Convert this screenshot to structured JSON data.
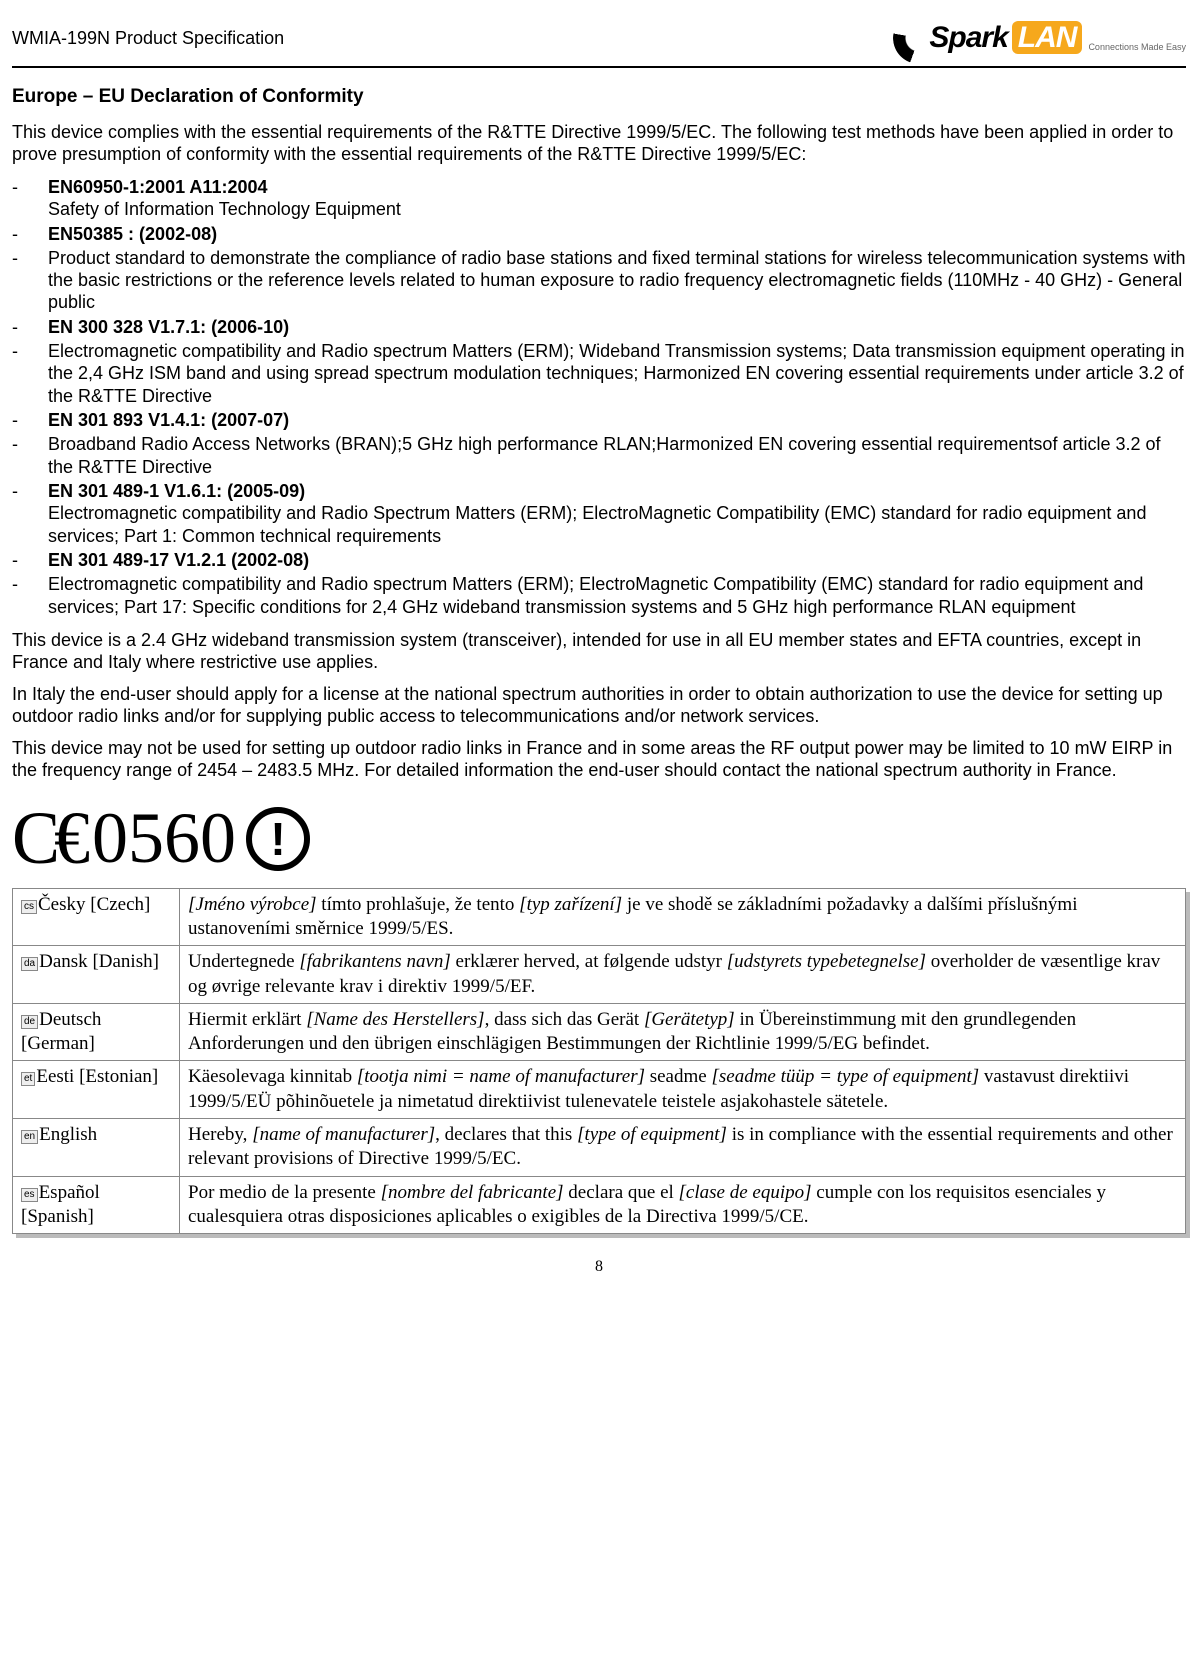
{
  "header": {
    "product": "WMIA-199N Product Specification",
    "logo_brand_a": "S",
    "logo_brand_b": "ark",
    "logo_lan": "LAN",
    "logo_tag": "Connections Made Easy"
  },
  "section_title": "Europe – EU Declaration of Conformity",
  "intro": "This device complies with the essential requirements of the R&TTE Directive 1999/5/EC. The following test methods have been applied in order to prove presumption of conformity with the essential requirements of the R&TTE Directive 1999/5/EC:",
  "standards": [
    {
      "head": "EN60950-1:2001 A11:2004",
      "body": "Safety of Information Technology Equipment",
      "inline": true
    },
    {
      "head": "EN50385 : (2002-08)",
      "body": "",
      "inline": false
    },
    {
      "head": "",
      "body": "Product standard to demonstrate the compliance of radio base stations and fixed terminal stations for wireless telecommunication systems with the basic restrictions or the reference levels related to human exposure to radio frequency electromagnetic fields (110MHz - 40 GHz) - General public",
      "inline": false
    },
    {
      "head": "EN 300 328 V1.7.1: (2006-10)",
      "body": "",
      "inline": false
    },
    {
      "head": "",
      "body": "Electromagnetic compatibility and Radio spectrum Matters (ERM); Wideband Transmission systems; Data transmission equipment operating in the 2,4 GHz ISM band and using spread spectrum modulation techniques; Harmonized EN covering essential requirements under article 3.2 of the R&TTE Directive",
      "inline": false
    },
    {
      "head": "EN 301 893 V1.4.1: (2007-07)",
      "body": "",
      "inline": false
    },
    {
      "head": "",
      "body": "Broadband Radio Access Networks (BRAN);5 GHz high performance RLAN;Harmonized EN covering essential requirementsof article 3.2 of the R&TTE Directive",
      "inline": false
    },
    {
      "head": "EN 301 489-1 V1.6.1: (2005-09)",
      "body": "Electromagnetic compatibility and Radio Spectrum Matters (ERM); ElectroMagnetic Compatibility (EMC) standard for radio equipment and services; Part 1: Common technical requirements",
      "inline": true
    },
    {
      "head": "EN 301 489-17 V1.2.1 (2002-08)",
      "body": "",
      "inline": false
    },
    {
      "head": "",
      "body": "Electromagnetic compatibility and Radio spectrum Matters (ERM); ElectroMagnetic Compatibility (EMC) standard for radio equipment and services; Part 17: Specific conditions for 2,4 GHz wideband transmission systems and 5 GHz high performance RLAN equipment",
      "inline": false
    }
  ],
  "para1": "This device is a 2.4 GHz wideband transmission system (transceiver), intended for use in all EU member states and EFTA countries, except in France and Italy where restrictive use applies.",
  "para2": "In Italy the end-user should apply for a license at the national spectrum authorities in order to obtain authorization to use the device for setting up outdoor radio links and/or for supplying public access to telecommunications and/or network services.",
  "para3": "This device may not be used for setting up outdoor radio links in France and in some areas the RF output power may be limited to 10 mW EIRP in the frequency range of 2454 – 2483.5 MHz. For detailed information the end-user should contact the national spectrum authority in France.",
  "ce": {
    "mark": "C€",
    "number": "0560",
    "warn": "!"
  },
  "table": [
    {
      "code": "cs",
      "lang": "Česky",
      "en": "[Czech]",
      "pre": "",
      "i1": "[Jméno výrobce]",
      "mid1": " tímto prohlašuje, že tento ",
      "i2": "[typ zařízení]",
      "mid2": " je ve shodě se základními požadavky a dalšími příslušnými ustanoveními směrnice 1999/5/ES.",
      "i3": "",
      "post": ""
    },
    {
      "code": "da",
      "lang": "Dansk",
      "en": "[Danish]",
      "pre": "Undertegnede ",
      "i1": "[fabrikantens navn]",
      "mid1": " erklærer herved, at følgende udstyr ",
      "i2": "[udstyrets typebetegnelse]",
      "mid2": " overholder de væsentlige krav og øvrige relevante krav i direktiv 1999/5/EF.",
      "i3": "",
      "post": ""
    },
    {
      "code": "de",
      "lang": "Deutsch",
      "en": "[German]",
      "pre": "Hiermit erklärt ",
      "i1": "[Name des Herstellers]",
      "mid1": ", dass sich das Gerät ",
      "i2": "[Gerätetyp]",
      "mid2": " in Übereinstimmung mit den grundlegenden Anforderungen und den übrigen einschlägigen Bestimmungen der Richtlinie 1999/5/EG befindet.",
      "i3": "",
      "post": ""
    },
    {
      "code": "et",
      "lang": "Eesti",
      "en": "[Estonian]",
      "pre": "Käesolevaga kinnitab ",
      "i1": "[tootja nimi = name of manufacturer]",
      "mid1": " seadme ",
      "i2": "[seadme tüüp = type of equipment]",
      "mid2": " vastavust direktiivi 1999/5/EÜ põhinõuetele ja nimetatud direktiivist tulenevatele teistele asjakohastele sätetele.",
      "i3": "",
      "post": ""
    },
    {
      "code": "en",
      "lang": "English",
      "en": "",
      "pre": "Hereby, ",
      "i1": "[name of manufacturer]",
      "mid1": ", declares that this ",
      "i2": "[type of equipment]",
      "mid2": " is in compliance with the essential requirements and other relevant provisions of Directive 1999/5/EC.",
      "i3": "",
      "post": ""
    },
    {
      "code": "es",
      "lang": "Español",
      "en": "[Spanish]",
      "pre": "Por medio de la presente ",
      "i1": "[nombre del fabricante]",
      "mid1": " declara que el ",
      "i2": "[clase de equipo]",
      "mid2": " cumple con los requisitos esenciales y cualesquiera otras disposiciones aplicables o exigibles de la Directiva 1999/5/CE.",
      "i3": "",
      "post": ""
    }
  ],
  "page_number": "8"
}
